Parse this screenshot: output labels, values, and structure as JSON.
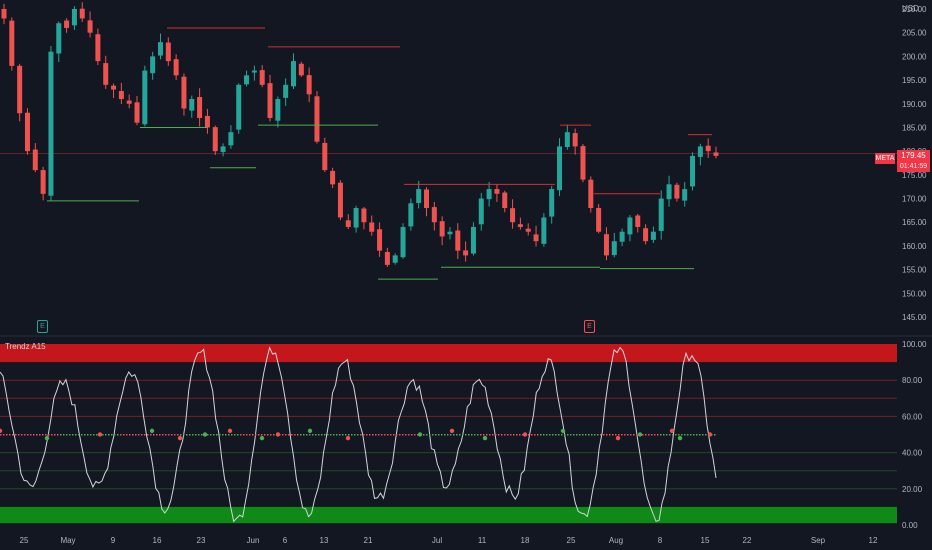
{
  "chart_data": [
    {
      "type": "candlestick",
      "symbol": "META",
      "currency": "USD",
      "last_price": "179.45",
      "last_price_short": "META",
      "countdown": "01:41:59",
      "ylim": [
        142,
        212
      ],
      "y_ticks": [
        "210.00",
        "205.00",
        "200.00",
        "195.00",
        "190.00",
        "185.00",
        "180.00",
        "175.00",
        "170.00",
        "165.00",
        "160.00",
        "155.00",
        "150.00",
        "145.00"
      ],
      "x_ticks": [
        "25",
        "May",
        "9",
        "16",
        "23",
        "Jun",
        "6",
        "13",
        "21",
        "Jul",
        "11",
        "18",
        "25",
        "Aug",
        "8",
        "15",
        "22",
        "Sep",
        "12"
      ],
      "series_close_path": [
        208,
        198,
        188,
        180,
        176,
        171,
        201,
        207,
        206,
        210,
        208,
        205,
        199,
        194,
        193,
        191,
        190,
        186,
        197,
        200,
        203,
        199,
        196,
        189,
        191,
        187,
        185,
        180,
        181,
        184,
        194,
        196,
        197,
        194,
        187,
        191,
        194,
        199,
        196,
        192,
        182,
        176,
        173,
        166,
        164,
        168,
        165,
        163,
        159,
        156,
        158,
        164,
        169,
        172,
        168,
        165,
        162,
        163,
        159,
        158,
        164,
        170,
        172,
        171,
        168,
        165,
        164,
        163,
        161,
        166,
        172,
        181,
        184,
        181,
        174,
        168,
        163,
        158,
        161,
        163,
        166,
        164,
        161,
        163,
        170,
        173,
        170,
        172,
        179,
        181,
        180,
        179
      ]
    },
    {
      "type": "line",
      "indicator": "Trendz A15",
      "ylim": [
        0,
        100
      ],
      "y_ticks": [
        "100.00",
        "80.00",
        "60.00",
        "40.00",
        "20.00",
        "0.00"
      ]
    }
  ],
  "events": [
    "E",
    "E"
  ],
  "colors": {
    "background": "#131722",
    "up": "#26a69a",
    "down": "#ef5350",
    "overbought_zone": "#c4171b",
    "oversold_zone": "#0f8a16",
    "resistance": "#d32f2f",
    "support": "#4caf50"
  }
}
